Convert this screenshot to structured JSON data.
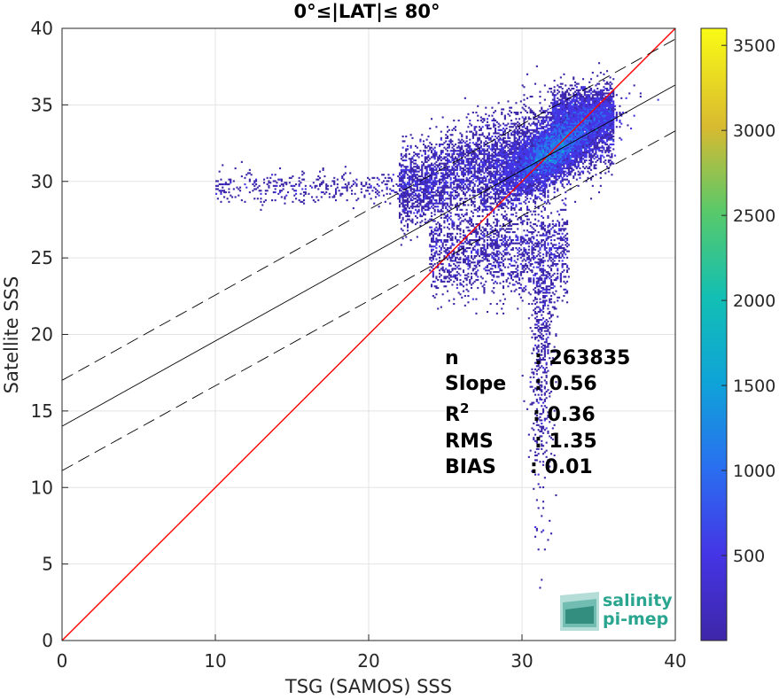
{
  "chart_data": {
    "type": "heatmap",
    "title": "0°≤|LAT|≤ 80°",
    "xlabel": "TSG (SAMOS) SSS",
    "ylabel": "Satellite SSS",
    "xlim": [
      0,
      40
    ],
    "ylim": [
      0,
      40
    ],
    "x_ticks": [
      "0",
      "10",
      "20",
      "30",
      "40"
    ],
    "y_ticks": [
      "0",
      "5",
      "10",
      "15",
      "20",
      "25",
      "30",
      "35",
      "40"
    ],
    "grid": true,
    "colorbar": {
      "range": [
        0,
        3600
      ],
      "ticks": [
        "500",
        "1000",
        "1500",
        "2000",
        "2500",
        "3000",
        "3500"
      ],
      "colormap": "parula"
    },
    "lines": [
      {
        "name": "1:1",
        "color": "#ff0000",
        "style": "solid",
        "x": [
          0,
          40
        ],
        "y": [
          0,
          40
        ]
      },
      {
        "name": "fit",
        "color": "#000000",
        "style": "solid",
        "x": [
          0,
          40
        ],
        "y": [
          14.0,
          36.3
        ]
      },
      {
        "name": "fit+1",
        "color": "#000000",
        "style": "dashed",
        "x": [
          0,
          40
        ],
        "y": [
          17.0,
          39.3
        ]
      },
      {
        "name": "fit-1",
        "color": "#000000",
        "style": "dashed",
        "x": [
          0,
          40
        ],
        "y": [
          11.1,
          33.3
        ]
      }
    ],
    "density_peak": {
      "x": 32.0,
      "y": 32.0
    },
    "stats": [
      {
        "label": "n",
        "value": ": 263835"
      },
      {
        "label": "Slope",
        "value": ": 0.56"
      },
      {
        "label": "R",
        "sup": "2",
        "value": ": 0.36"
      },
      {
        "label": "RMS",
        "value": ": 1.35"
      },
      {
        "label": "BIAS",
        "value": ": 0.01"
      }
    ]
  },
  "logo": {
    "line1": "salinity",
    "line2": "pi-mep"
  }
}
